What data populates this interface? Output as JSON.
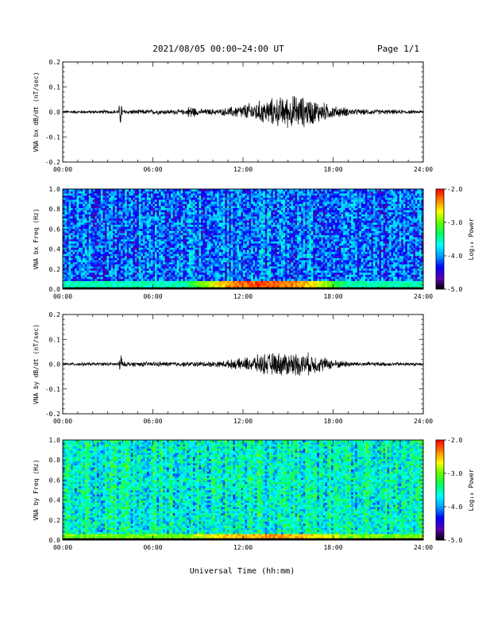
{
  "header": {
    "title": "2021/08/05  00:00−24:00 UT",
    "page": "Page 1/1"
  },
  "xlabel": "Universal Time (hh:mm)",
  "colors": {
    "trace": "#000000",
    "colormap": [
      "#000000",
      "#5b00b0",
      "#0000ff",
      "#00a0ff",
      "#00ffff",
      "#00ff60",
      "#60ff00",
      "#ffff00",
      "#ff8000",
      "#ff0000"
    ]
  },
  "chart_data": [
    {
      "type": "line",
      "ylabel": "VNA bx dB/dt (nT/sec)",
      "xlim": [
        0,
        24
      ],
      "ylim": [
        -0.2,
        0.2
      ],
      "yticks": [
        "-0.2",
        "-0.1",
        "0.0",
        "0.1",
        "0.2"
      ],
      "xticks": [
        "00:00",
        "06:00",
        "12:00",
        "18:00",
        "24:00"
      ],
      "envelope": [
        {
          "x": 0,
          "amp": 0.005
        },
        {
          "x": 3.7,
          "amp": 0.006
        },
        {
          "x": 3.85,
          "amp": 0.05
        },
        {
          "x": 4.0,
          "amp": 0.008
        },
        {
          "x": 8.2,
          "amp": 0.008
        },
        {
          "x": 8.5,
          "amp": 0.025
        },
        {
          "x": 9.0,
          "amp": 0.01
        },
        {
          "x": 10.5,
          "amp": 0.01
        },
        {
          "x": 11.5,
          "amp": 0.02
        },
        {
          "x": 12.5,
          "amp": 0.03
        },
        {
          "x": 14.0,
          "amp": 0.045
        },
        {
          "x": 15.5,
          "amp": 0.055
        },
        {
          "x": 16.5,
          "amp": 0.045
        },
        {
          "x": 18.0,
          "amp": 0.02
        },
        {
          "x": 19.5,
          "amp": 0.01
        },
        {
          "x": 24,
          "amp": 0.005
        }
      ]
    },
    {
      "type": "heatmap",
      "ylabel": "VNA bx Freq (Hz)",
      "xlim": [
        0,
        24
      ],
      "ylim": [
        0.0,
        1.0
      ],
      "yticks": [
        "0.0",
        "0.2",
        "0.4",
        "0.6",
        "0.8",
        "1.0"
      ],
      "xticks": [
        "00:00",
        "06:00",
        "12:00",
        "18:00",
        "24:00"
      ],
      "colorbar": {
        "label": "Log₁₀ Power",
        "range": [
          -5.0,
          -2.0
        ],
        "ticks": [
          "-5.0",
          "-4.0",
          "-3.0",
          "-2.0"
        ]
      },
      "background_level": -4.1,
      "low_freq_enhancement": {
        "freq_max": 0.08,
        "time_range": [
          8,
          19
        ],
        "peak_level": -2.2
      }
    },
    {
      "type": "line",
      "ylabel": "VNA by dB/dt (nT/sec)",
      "xlim": [
        0,
        24
      ],
      "ylim": [
        -0.2,
        0.2
      ],
      "yticks": [
        "-0.2",
        "-0.1",
        "0.0",
        "0.1",
        "0.2"
      ],
      "xticks": [
        "00:00",
        "06:00",
        "12:00",
        "18:00",
        "24:00"
      ],
      "envelope": [
        {
          "x": 0,
          "amp": 0.005
        },
        {
          "x": 3.7,
          "amp": 0.006
        },
        {
          "x": 3.85,
          "amp": 0.04
        },
        {
          "x": 4.0,
          "amp": 0.008
        },
        {
          "x": 8.0,
          "amp": 0.008
        },
        {
          "x": 10.5,
          "amp": 0.01
        },
        {
          "x": 12.0,
          "amp": 0.02
        },
        {
          "x": 13.5,
          "amp": 0.035
        },
        {
          "x": 15.0,
          "amp": 0.04
        },
        {
          "x": 16.5,
          "amp": 0.035
        },
        {
          "x": 18.0,
          "amp": 0.015
        },
        {
          "x": 19.5,
          "amp": 0.008
        },
        {
          "x": 24,
          "amp": 0.005
        }
      ]
    },
    {
      "type": "heatmap",
      "ylabel": "VNA by Freq (Hz)",
      "xlim": [
        0,
        24
      ],
      "ylim": [
        0.0,
        1.0
      ],
      "yticks": [
        "0.0",
        "0.2",
        "0.4",
        "0.6",
        "0.8",
        "1.0"
      ],
      "xticks": [
        "00:00",
        "06:00",
        "12:00",
        "18:00",
        "24:00"
      ],
      "colorbar": {
        "label": "Log₁₀ Power",
        "range": [
          -5.0,
          -2.0
        ],
        "ticks": [
          "-5.0",
          "-4.0",
          "-3.0",
          "-2.0"
        ]
      },
      "background_level": -3.6,
      "low_freq_enhancement": {
        "freq_max": 0.06,
        "time_range": [
          8,
          19
        ],
        "peak_level": -2.4
      }
    }
  ]
}
